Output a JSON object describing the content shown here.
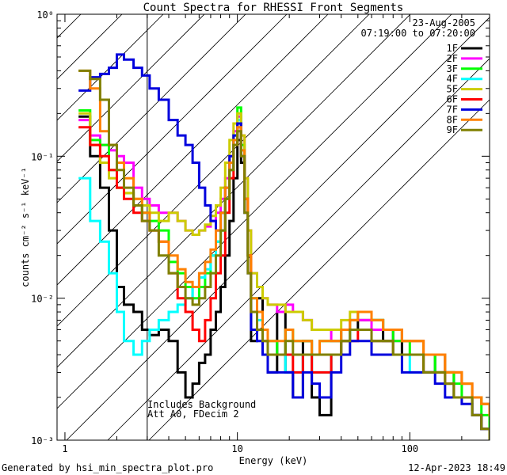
{
  "chart_data": {
    "type": "line",
    "title": "Count Spectra for RHESSI Front Segments",
    "xlabel": "Energy (keV)",
    "ylabel": "counts cm⁻² s⁻¹ keV⁻¹",
    "xscale": "log",
    "yscale": "log",
    "xlim": [
      0.9,
      290
    ],
    "ylim": [
      0.001,
      1.0
    ],
    "x_ticks": [
      "1",
      "10",
      "100"
    ],
    "y_ticks": [
      "10⁻³",
      "10⁻²",
      "10⁻¹",
      "10⁰"
    ],
    "shaded_region_max_energy": 3,
    "legend": {
      "placement": "top-right",
      "date": "23-Aug-2005",
      "time_range": "07:19:00 to 07:20:00"
    },
    "annotations": [
      "Includes Background",
      "Att A0, FDecim 2"
    ],
    "footer_left": "Generated by hsi_min_spectra_plot.pro",
    "footer_right": "12-Apr-2023 18:49",
    "series": [
      {
        "name": "1F",
        "color": "#000000",
        "x": [
          1.2,
          1.4,
          1.6,
          1.8,
          2.0,
          2.2,
          2.5,
          2.8,
          3.1,
          3.5,
          4.0,
          4.5,
          5.0,
          5.5,
          6.0,
          6.5,
          7.0,
          7.5,
          8.0,
          8.5,
          9.0,
          9.5,
          10.0,
          10.5,
          11.0,
          11.5,
          12.0,
          13.0,
          14.0,
          15.0,
          17.0,
          19.0,
          21.0,
          24.0,
          27.0,
          30.0,
          35.0,
          40.0,
          45.0,
          50.0,
          60.0,
          70.0,
          80.0,
          90.0,
          100.0,
          120.0,
          140.0,
          160.0,
          180.0,
          200.0,
          230.0,
          260.0,
          290.0
        ],
        "y": [
          0.19,
          0.1,
          0.06,
          0.03,
          0.012,
          0.009,
          0.008,
          0.006,
          0.0055,
          0.006,
          0.005,
          0.003,
          0.002,
          0.0025,
          0.0035,
          0.004,
          0.006,
          0.008,
          0.012,
          0.02,
          0.035,
          0.07,
          0.13,
          0.09,
          0.05,
          0.02,
          0.005,
          0.01,
          0.004,
          0.003,
          0.008,
          0.003,
          0.002,
          0.005,
          0.002,
          0.0015,
          0.004,
          0.005,
          0.006,
          0.007,
          0.007,
          0.005,
          0.006,
          0.004,
          0.004,
          0.003,
          0.004,
          0.003,
          0.002,
          0.002,
          0.0015,
          0.0012,
          0.001
        ]
      },
      {
        "name": "2F",
        "color": "#ff00ff",
        "x": [
          1.2,
          1.4,
          1.6,
          1.8,
          2.0,
          2.2,
          2.5,
          2.8,
          3.1,
          3.5,
          4.0,
          4.5,
          5.0,
          5.5,
          6.0,
          6.5,
          7.0,
          7.5,
          8.0,
          8.5,
          9.0,
          9.5,
          10.0,
          10.5,
          11.0,
          11.5,
          12.0,
          13.0,
          14.0,
          15.0,
          17.0,
          19.0,
          21.0,
          24.0,
          27.0,
          30.0,
          35.0,
          40.0,
          45.0,
          50.0,
          60.0,
          70.0,
          80.0,
          90.0,
          100.0,
          120.0,
          140.0,
          160.0,
          180.0,
          200.0,
          230.0,
          260.0,
          290.0
        ],
        "y": [
          0.18,
          0.14,
          0.12,
          0.11,
          0.1,
          0.09,
          0.06,
          0.05,
          0.045,
          0.04,
          0.04,
          0.035,
          0.03,
          0.028,
          0.03,
          0.032,
          0.035,
          0.04,
          0.05,
          0.07,
          0.1,
          0.15,
          0.19,
          0.14,
          0.07,
          0.03,
          0.015,
          0.012,
          0.01,
          0.009,
          0.008,
          0.009,
          0.008,
          0.007,
          0.006,
          0.006,
          0.005,
          0.006,
          0.007,
          0.007,
          0.006,
          0.006,
          0.005,
          0.005,
          0.005,
          0.004,
          0.004,
          0.003,
          0.003,
          0.0025,
          0.002,
          0.0018,
          0.0015
        ]
      },
      {
        "name": "3F",
        "color": "#00ff00",
        "x": [
          1.2,
          1.4,
          1.6,
          1.8,
          2.0,
          2.2,
          2.5,
          2.8,
          3.1,
          3.5,
          4.0,
          4.5,
          5.0,
          5.5,
          6.0,
          6.5,
          7.0,
          7.5,
          8.0,
          8.5,
          9.0,
          9.5,
          10.0,
          10.5,
          11.0,
          11.5,
          12.0,
          13.0,
          14.0,
          15.0,
          17.0,
          19.0,
          21.0,
          24.0,
          27.0,
          30.0,
          35.0,
          40.0,
          45.0,
          50.0,
          60.0,
          70.0,
          80.0,
          90.0,
          100.0,
          120.0,
          140.0,
          160.0,
          180.0,
          200.0,
          230.0,
          260.0,
          290.0
        ],
        "y": [
          0.21,
          0.13,
          0.12,
          0.08,
          0.06,
          0.055,
          0.045,
          0.04,
          0.035,
          0.03,
          0.018,
          0.015,
          0.012,
          0.01,
          0.012,
          0.015,
          0.02,
          0.025,
          0.03,
          0.05,
          0.08,
          0.14,
          0.22,
          0.12,
          0.05,
          0.02,
          0.01,
          0.008,
          0.006,
          0.005,
          0.004,
          0.006,
          0.005,
          0.005,
          0.004,
          0.005,
          0.005,
          0.006,
          0.007,
          0.008,
          0.007,
          0.006,
          0.005,
          0.005,
          0.004,
          0.004,
          0.003,
          0.003,
          0.0025,
          0.002,
          0.002,
          0.0015,
          0.0012
        ]
      },
      {
        "name": "4F",
        "color": "#00ffff",
        "x": [
          1.2,
          1.4,
          1.6,
          1.8,
          2.0,
          2.2,
          2.5,
          2.8,
          3.1,
          3.5,
          4.0,
          4.5,
          5.0,
          5.5,
          6.0,
          6.5,
          7.0,
          7.5,
          8.0,
          8.5,
          9.0,
          9.5,
          10.0,
          10.5,
          11.0,
          11.5,
          12.0,
          13.0,
          14.0,
          15.0,
          17.0,
          19.0,
          21.0,
          24.0,
          27.0,
          30.0,
          35.0,
          40.0,
          45.0,
          50.0,
          60.0,
          70.0,
          80.0,
          90.0,
          100.0,
          120.0,
          140.0,
          160.0,
          180.0,
          200.0,
          230.0,
          260.0,
          290.0
        ],
        "y": [
          0.07,
          0.035,
          0.025,
          0.015,
          0.008,
          0.005,
          0.004,
          0.005,
          0.006,
          0.007,
          0.008,
          0.009,
          0.01,
          0.012,
          0.014,
          0.016,
          0.02,
          0.025,
          0.03,
          0.05,
          0.08,
          0.13,
          0.18,
          0.11,
          0.05,
          0.02,
          0.01,
          0.007,
          0.005,
          0.004,
          0.004,
          0.003,
          0.003,
          0.004,
          0.003,
          0.003,
          0.004,
          0.005,
          0.006,
          0.006,
          0.005,
          0.005,
          0.004,
          0.004,
          0.003,
          0.003,
          0.003,
          0.0025,
          0.002,
          0.002,
          0.0015,
          0.0012,
          0.001
        ]
      },
      {
        "name": "5F",
        "color": "#cccc00",
        "x": [
          1.2,
          1.4,
          1.6,
          1.8,
          2.0,
          2.2,
          2.5,
          2.8,
          3.1,
          3.5,
          4.0,
          4.5,
          5.0,
          5.5,
          6.0,
          6.5,
          7.0,
          7.5,
          8.0,
          8.5,
          9.0,
          9.5,
          10.0,
          10.5,
          11.0,
          11.5,
          12.0,
          13.0,
          14.0,
          15.0,
          17.0,
          19.0,
          21.0,
          24.0,
          27.0,
          30.0,
          35.0,
          40.0,
          45.0,
          50.0,
          60.0,
          70.0,
          80.0,
          90.0,
          100.0,
          120.0,
          140.0,
          160.0,
          180.0,
          200.0,
          230.0,
          260.0,
          290.0
        ],
        "y": [
          0.2,
          0.12,
          0.09,
          0.07,
          0.06,
          0.055,
          0.05,
          0.045,
          0.04,
          0.035,
          0.04,
          0.035,
          0.03,
          0.028,
          0.03,
          0.033,
          0.038,
          0.045,
          0.06,
          0.09,
          0.13,
          0.17,
          0.2,
          0.14,
          0.07,
          0.03,
          0.015,
          0.012,
          0.01,
          0.009,
          0.009,
          0.008,
          0.008,
          0.007,
          0.006,
          0.006,
          0.006,
          0.007,
          0.008,
          0.008,
          0.007,
          0.006,
          0.006,
          0.005,
          0.005,
          0.004,
          0.004,
          0.003,
          0.003,
          0.0025,
          0.002,
          0.0018,
          0.0015
        ]
      },
      {
        "name": "6F",
        "color": "#ff0000",
        "x": [
          1.2,
          1.4,
          1.6,
          1.8,
          2.0,
          2.2,
          2.5,
          2.8,
          3.1,
          3.5,
          4.0,
          4.5,
          5.0,
          5.5,
          6.0,
          6.5,
          7.0,
          7.5,
          8.0,
          8.5,
          9.0,
          9.5,
          10.0,
          10.5,
          11.0,
          11.5,
          12.0,
          13.0,
          14.0,
          15.0,
          17.0,
          19.0,
          21.0,
          24.0,
          27.0,
          30.0,
          35.0,
          40.0,
          45.0,
          50.0,
          60.0,
          70.0,
          80.0,
          90.0,
          100.0,
          120.0,
          140.0,
          160.0,
          180.0,
          200.0,
          230.0,
          260.0,
          290.0
        ],
        "y": [
          0.16,
          0.12,
          0.1,
          0.08,
          0.06,
          0.05,
          0.04,
          0.035,
          0.03,
          0.025,
          0.015,
          0.01,
          0.008,
          0.006,
          0.005,
          0.007,
          0.01,
          0.015,
          0.02,
          0.04,
          0.07,
          0.12,
          0.17,
          0.1,
          0.05,
          0.02,
          0.008,
          0.006,
          0.005,
          0.004,
          0.004,
          0.004,
          0.003,
          0.004,
          0.003,
          0.003,
          0.004,
          0.005,
          0.005,
          0.006,
          0.005,
          0.005,
          0.004,
          0.004,
          0.004,
          0.003,
          0.003,
          0.0025,
          0.002,
          0.002,
          0.0015,
          0.0012,
          0.001
        ]
      },
      {
        "name": "7F",
        "color": "#0000dd",
        "x": [
          1.2,
          1.4,
          1.6,
          1.8,
          2.0,
          2.2,
          2.5,
          2.8,
          3.1,
          3.5,
          4.0,
          4.5,
          5.0,
          5.5,
          6.0,
          6.5,
          7.0,
          7.5,
          8.0,
          8.5,
          9.0,
          9.5,
          10.0,
          10.5,
          11.0,
          11.5,
          12.0,
          13.0,
          14.0,
          15.0,
          17.0,
          19.0,
          21.0,
          24.0,
          27.0,
          30.0,
          35.0,
          40.0,
          45.0,
          50.0,
          60.0,
          70.0,
          80.0,
          90.0,
          100.0,
          120.0,
          140.0,
          160.0,
          180.0,
          200.0,
          230.0,
          260.0,
          290.0
        ],
        "y": [
          0.29,
          0.36,
          0.38,
          0.42,
          0.52,
          0.48,
          0.42,
          0.37,
          0.3,
          0.25,
          0.18,
          0.14,
          0.12,
          0.09,
          0.06,
          0.045,
          0.035,
          0.03,
          0.04,
          0.06,
          0.1,
          0.14,
          0.17,
          0.1,
          0.04,
          0.015,
          0.006,
          0.005,
          0.004,
          0.003,
          0.003,
          0.003,
          0.002,
          0.003,
          0.0025,
          0.002,
          0.003,
          0.004,
          0.005,
          0.005,
          0.004,
          0.004,
          0.004,
          0.003,
          0.003,
          0.003,
          0.0025,
          0.002,
          0.002,
          0.0018,
          0.0015,
          0.0012,
          0.001
        ]
      },
      {
        "name": "8F",
        "color": "#ff8000",
        "x": [
          1.2,
          1.4,
          1.6,
          1.8,
          2.0,
          2.2,
          2.5,
          2.8,
          3.1,
          3.5,
          4.0,
          4.5,
          5.0,
          5.5,
          6.0,
          6.5,
          7.0,
          7.5,
          8.0,
          8.5,
          9.0,
          9.5,
          10.0,
          10.5,
          11.0,
          11.5,
          12.0,
          13.0,
          14.0,
          15.0,
          17.0,
          19.0,
          21.0,
          24.0,
          27.0,
          30.0,
          35.0,
          40.0,
          45.0,
          50.0,
          60.0,
          70.0,
          80.0,
          90.0,
          100.0,
          120.0,
          140.0,
          160.0,
          180.0,
          200.0,
          230.0,
          260.0,
          290.0
        ],
        "y": [
          0.4,
          0.3,
          0.15,
          0.12,
          0.09,
          0.07,
          0.05,
          0.04,
          0.03,
          0.025,
          0.02,
          0.016,
          0.013,
          0.012,
          0.015,
          0.018,
          0.022,
          0.03,
          0.04,
          0.06,
          0.09,
          0.13,
          0.16,
          0.11,
          0.05,
          0.02,
          0.01,
          0.008,
          0.006,
          0.005,
          0.005,
          0.006,
          0.005,
          0.005,
          0.004,
          0.005,
          0.005,
          0.006,
          0.007,
          0.008,
          0.007,
          0.006,
          0.006,
          0.005,
          0.005,
          0.004,
          0.004,
          0.003,
          0.003,
          0.0025,
          0.002,
          0.0018,
          0.0015
        ]
      },
      {
        "name": "9F",
        "color": "#808000",
        "x": [
          1.2,
          1.4,
          1.6,
          1.8,
          2.0,
          2.2,
          2.5,
          2.8,
          3.1,
          3.5,
          4.0,
          4.5,
          5.0,
          5.5,
          6.0,
          6.5,
          7.0,
          7.5,
          8.0,
          8.5,
          9.0,
          9.5,
          10.0,
          10.5,
          11.0,
          11.5,
          12.0,
          13.0,
          14.0,
          15.0,
          17.0,
          19.0,
          21.0,
          24.0,
          27.0,
          30.0,
          35.0,
          40.0,
          45.0,
          50.0,
          60.0,
          70.0,
          80.0,
          90.0,
          100.0,
          120.0,
          140.0,
          160.0,
          180.0,
          200.0,
          230.0,
          260.0,
          290.0
        ],
        "y": [
          0.4,
          0.35,
          0.25,
          0.12,
          0.08,
          0.06,
          0.045,
          0.035,
          0.03,
          0.02,
          0.015,
          0.012,
          0.01,
          0.009,
          0.01,
          0.012,
          0.015,
          0.02,
          0.03,
          0.05,
          0.08,
          0.12,
          0.15,
          0.1,
          0.04,
          0.015,
          0.008,
          0.006,
          0.005,
          0.004,
          0.004,
          0.005,
          0.004,
          0.004,
          0.004,
          0.004,
          0.004,
          0.005,
          0.006,
          0.006,
          0.005,
          0.005,
          0.004,
          0.004,
          0.004,
          0.003,
          0.003,
          0.0025,
          0.002,
          0.002,
          0.0015,
          0.0012,
          0.001
        ]
      }
    ]
  }
}
